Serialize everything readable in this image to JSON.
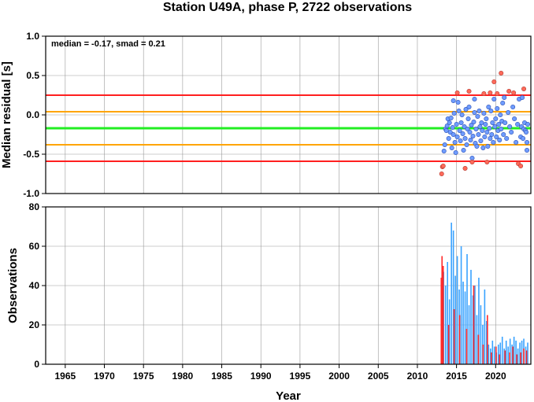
{
  "chart_data": {
    "title": "Station U49A, phase P, 2722 observations",
    "xlabel": "Year",
    "xlim": [
      1962.5,
      2024.5
    ],
    "x_ticks": [
      1965,
      1970,
      1975,
      1980,
      1985,
      1990,
      1995,
      2000,
      2005,
      2010,
      2015,
      2020
    ],
    "grid": true,
    "panels": [
      {
        "type": "scatter",
        "ylabel": "Median residual [s]",
        "ylim": [
          -1.0,
          1.0
        ],
        "y_ticks": [
          "-1.0",
          "-0.5",
          "0.0",
          "0.5",
          "1.0"
        ],
        "annotation": "median = -0.17, smad = 0.21",
        "reference_lines": [
          {
            "value": 0.25,
            "color": "#ff1f1f"
          },
          {
            "value": 0.04,
            "color": "#ffa500"
          },
          {
            "value": -0.17,
            "color": "#22ee22"
          },
          {
            "value": -0.38,
            "color": "#ffa500"
          },
          {
            "value": -0.59,
            "color": "#ff1f1f"
          }
        ],
        "inlier_color": "#6f9cff",
        "outlier_color": "#ff6a5a",
        "points": [
          [
            2013.1,
            -0.75
          ],
          [
            2013.2,
            -0.66
          ],
          [
            2013.4,
            -0.46
          ],
          [
            2013.5,
            -0.38
          ],
          [
            2013.6,
            -0.18
          ],
          [
            2013.7,
            -0.2
          ],
          [
            2013.8,
            -0.14
          ],
          [
            2013.9,
            -0.05
          ],
          [
            2014.0,
            -0.3
          ],
          [
            2014.1,
            -0.1
          ],
          [
            2014.2,
            -0.22
          ],
          [
            2014.3,
            -0.04
          ],
          [
            2014.4,
            -0.42
          ],
          [
            2014.5,
            -0.16
          ],
          [
            2014.6,
            -0.25
          ],
          [
            2014.7,
            0.02
          ],
          [
            2014.8,
            -0.35
          ],
          [
            2014.9,
            -0.48
          ],
          [
            2015.0,
            -0.12
          ],
          [
            2015.1,
            -0.28
          ],
          [
            2015.2,
            0.16
          ],
          [
            2015.3,
            0.05
          ],
          [
            2015.4,
            -0.2
          ],
          [
            2015.5,
            -0.33
          ],
          [
            2015.6,
            -0.1
          ],
          [
            2015.7,
            0.0
          ],
          [
            2015.8,
            -0.24
          ],
          [
            2015.9,
            -0.45
          ],
          [
            2016.0,
            -0.15
          ],
          [
            2016.1,
            -0.3
          ],
          [
            2016.2,
            0.07
          ],
          [
            2016.3,
            -0.38
          ],
          [
            2016.4,
            -0.18
          ],
          [
            2016.5,
            -0.05
          ],
          [
            2016.6,
            0.1
          ],
          [
            2016.7,
            -0.22
          ],
          [
            2016.8,
            -0.32
          ],
          [
            2016.9,
            -0.13
          ],
          [
            2017.0,
            -0.55
          ],
          [
            2017.1,
            -0.27
          ],
          [
            2017.2,
            -0.09
          ],
          [
            2017.3,
            0.03
          ],
          [
            2017.4,
            -0.36
          ],
          [
            2017.5,
            -0.18
          ],
          [
            2017.6,
            -0.4
          ],
          [
            2017.7,
            -0.02
          ],
          [
            2017.8,
            -0.25
          ],
          [
            2017.9,
            0.05
          ],
          [
            2018.0,
            -0.15
          ],
          [
            2018.1,
            -0.33
          ],
          [
            2018.2,
            -0.1
          ],
          [
            2018.3,
            -0.2
          ],
          [
            2018.4,
            -0.42
          ],
          [
            2018.5,
            0.02
          ],
          [
            2018.6,
            -0.28
          ],
          [
            2018.7,
            -0.12
          ],
          [
            2018.8,
            -0.05
          ],
          [
            2018.9,
            -0.22
          ],
          [
            2019.0,
            -0.4
          ],
          [
            2019.1,
            0.1
          ],
          [
            2019.2,
            -0.17
          ],
          [
            2019.3,
            -0.3
          ],
          [
            2019.4,
            0.05
          ],
          [
            2019.5,
            -0.25
          ],
          [
            2019.6,
            -0.1
          ],
          [
            2019.7,
            -0.35
          ],
          [
            2019.8,
            0.2
          ],
          [
            2019.9,
            -0.15
          ],
          [
            2020.0,
            -0.05
          ],
          [
            2020.1,
            -0.28
          ],
          [
            2020.2,
            0.08
          ],
          [
            2020.3,
            -0.2
          ],
          [
            2020.4,
            -0.12
          ],
          [
            2020.5,
            -0.32
          ],
          [
            2020.6,
            0.0
          ],
          [
            2020.7,
            -0.18
          ],
          [
            2020.8,
            -0.08
          ],
          [
            2020.9,
            0.15
          ],
          [
            2021.0,
            -0.25
          ],
          [
            2021.2,
            -0.1
          ],
          [
            2021.4,
            -0.3
          ],
          [
            2021.6,
            0.03
          ],
          [
            2021.8,
            -0.15
          ],
          [
            2022.0,
            -0.22
          ],
          [
            2022.2,
            0.1
          ],
          [
            2022.4,
            -0.05
          ],
          [
            2022.6,
            -0.35
          ],
          [
            2022.8,
            -0.12
          ],
          [
            2023.0,
            0.2
          ],
          [
            2023.2,
            -0.28
          ],
          [
            2023.3,
            -0.15
          ],
          [
            2023.4,
            0.22
          ],
          [
            2023.5,
            -0.3
          ],
          [
            2023.6,
            -0.18
          ],
          [
            2023.7,
            -0.1
          ],
          [
            2023.8,
            -0.2
          ],
          [
            2023.9,
            -0.22
          ],
          [
            2024.0,
            -0.35
          ],
          [
            2024.1,
            -0.12
          ],
          [
            2013.3,
            -0.65
          ],
          [
            2014.6,
            0.18
          ],
          [
            2015.1,
            0.28
          ],
          [
            2016.1,
            -0.68
          ],
          [
            2016.6,
            0.3
          ],
          [
            2017.0,
            -0.6
          ],
          [
            2017.3,
            0.2
          ],
          [
            2018.5,
            0.27
          ],
          [
            2018.9,
            -0.6
          ],
          [
            2019.3,
            0.28
          ],
          [
            2019.8,
            0.42
          ],
          [
            2020.2,
            0.27
          ],
          [
            2020.7,
            0.53
          ],
          [
            2021.1,
            0.22
          ],
          [
            2021.7,
            0.3
          ],
          [
            2022.3,
            0.28
          ],
          [
            2022.9,
            -0.62
          ],
          [
            2023.2,
            -0.65
          ],
          [
            2023.6,
            0.33
          ],
          [
            2024.0,
            -0.45
          ]
        ]
      },
      {
        "type": "bar",
        "ylabel": "Observations",
        "ylim": [
          0,
          80
        ],
        "y_ticks": [
          "0",
          "20",
          "40",
          "60",
          "80"
        ],
        "series": [
          {
            "color": "#3aa3ff",
            "x": [
              2013.35,
              2013.6,
              2013.85,
              2014.1,
              2014.35,
              2014.6,
              2014.85,
              2015.1,
              2015.35,
              2015.6,
              2015.85,
              2016.1,
              2016.35,
              2016.6,
              2016.85,
              2017.1,
              2017.35,
              2017.6,
              2017.85,
              2018.1,
              2018.35,
              2018.6,
              2018.85,
              2019.1,
              2019.35,
              2019.6,
              2019.85,
              2020.1,
              2020.35,
              2020.6,
              2020.85,
              2021.1,
              2021.35,
              2021.6,
              2021.85,
              2022.1,
              2022.35,
              2022.6,
              2022.85,
              2023.1,
              2023.35,
              2023.6,
              2023.85,
              2024.1
            ],
            "values": [
              47,
              40,
              52,
              33,
              72,
              68,
              45,
              55,
              38,
              60,
              42,
              37,
              56,
              30,
              48,
              35,
              40,
              25,
              44,
              30,
              20,
              38,
              22,
              10,
              8,
              12,
              9,
              6,
              10,
              11,
              14,
              8,
              12,
              9,
              13,
              10,
              14,
              12,
              8,
              11,
              12,
              13,
              9,
              11
            ]
          },
          {
            "color": "#ff2a2a",
            "x": [
              2013.05,
              2013.15,
              2013.3,
              2014.0,
              2014.7,
              2015.4,
              2016.3,
              2017.2,
              2017.8,
              2018.4,
              2018.95,
              2019.45,
              2020.05,
              2020.5,
              2021.2,
              2021.8,
              2022.2,
              2022.7,
              2023.2,
              2023.6,
              2023.95
            ],
            "values": [
              44,
              55,
              50,
              20,
              28,
              25,
              18,
              40,
              15,
              10,
              25,
              6,
              9,
              5,
              7,
              6,
              9,
              5,
              6,
              8,
              7
            ]
          }
        ]
      }
    ]
  }
}
